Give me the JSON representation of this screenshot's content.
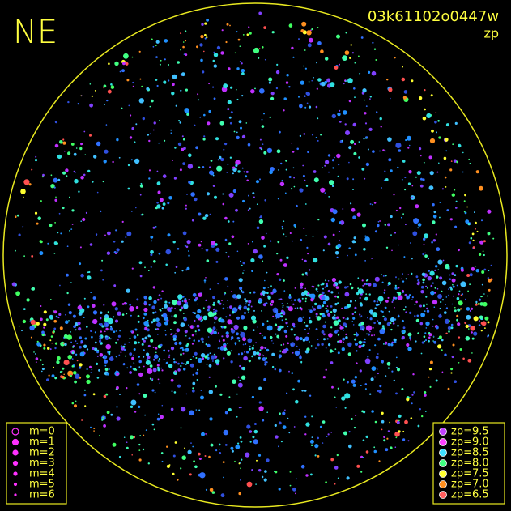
{
  "header": {
    "station": "NE",
    "frame": "03k61102o0447w",
    "mode": "zp"
  },
  "m_legend": {
    "entries": [
      "m=0",
      "m=1",
      "m=2",
      "m=3",
      "m=4",
      "m=5",
      "m=6"
    ]
  },
  "zp_legend": {
    "entries": [
      {
        "label": "zp=9.5",
        "color": "#c040ff"
      },
      {
        "label": "zp=9.0",
        "color": "#ff40ff"
      },
      {
        "label": "zp=8.5",
        "color": "#40e0ff"
      },
      {
        "label": "zp=8.0",
        "color": "#40ff80"
      },
      {
        "label": "zp=7.5",
        "color": "#ffff30"
      },
      {
        "label": "zp=7.0",
        "color": "#ff9020"
      },
      {
        "label": "zp=6.5",
        "color": "#ff6060"
      }
    ]
  }
}
